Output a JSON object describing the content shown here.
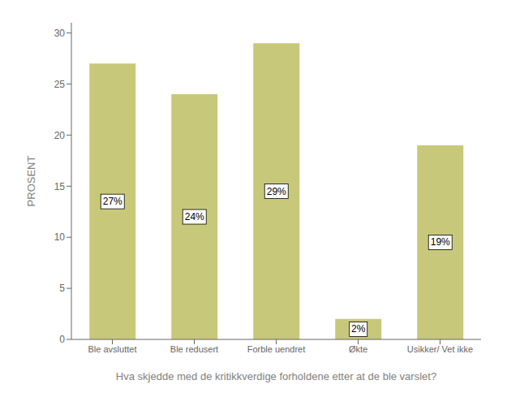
{
  "chart_data": {
    "type": "bar",
    "categories": [
      "Ble avsluttet",
      "Ble redusert",
      "Forble uendret",
      "Økte",
      "Usikker/ Vet ikke"
    ],
    "values": [
      27,
      24,
      29,
      2,
      19
    ],
    "value_labels": [
      "27%",
      "24%",
      "29%",
      "2%",
      "19%"
    ],
    "data_labels": true,
    "color": "#c8c87a",
    "ylim": [
      0,
      31
    ],
    "yticks": [
      0,
      5,
      10,
      15,
      20,
      25,
      30
    ],
    "ylabel": "PROSENT",
    "xlabel": "Hva skjedde med de kritikkverdige forholdene etter at de ble varslet?",
    "grid": false
  }
}
